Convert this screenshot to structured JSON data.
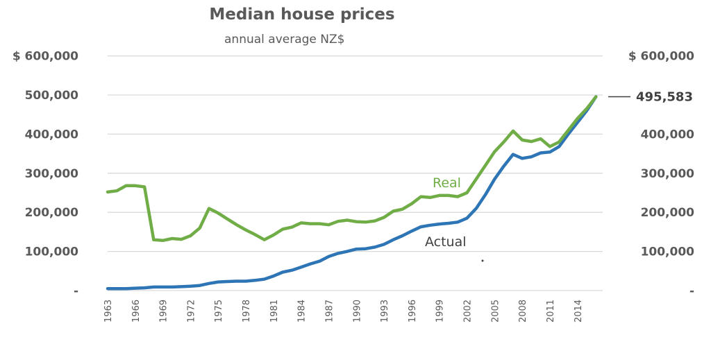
{
  "chart_data": {
    "type": "line",
    "title": "Median house prices",
    "subtitle": "annual average NZ$",
    "xlabel": "",
    "ylabel": "",
    "ylim": [
      0,
      600000
    ],
    "grid": true,
    "y_ticks_left": [
      {
        "value": 600000,
        "label": "$ 600,000"
      },
      {
        "value": 500000,
        "label": "500,000"
      },
      {
        "value": 400000,
        "label": "400,000"
      },
      {
        "value": 300000,
        "label": "300,000"
      },
      {
        "value": 200000,
        "label": "200,000"
      },
      {
        "value": 100000,
        "label": "100,000"
      },
      {
        "value": 0,
        "label": "-"
      }
    ],
    "y_ticks_right": [
      {
        "value": 600000,
        "label": "$ 600,000"
      },
      {
        "value": 400000,
        "label": "400,000"
      },
      {
        "value": 300000,
        "label": "300,000"
      },
      {
        "value": 200000,
        "label": "200,000"
      },
      {
        "value": 100000,
        "label": "100,000"
      },
      {
        "value": 0,
        "label": "-"
      }
    ],
    "x_tick_labels": [
      "1963",
      "1966",
      "1969",
      "1972",
      "1975",
      "1978",
      "1981",
      "1984",
      "1987",
      "1990",
      "1993",
      "1996",
      "1999",
      "2002",
      "2005",
      "2008",
      "2011",
      "2014"
    ],
    "x": [
      1963,
      1964,
      1965,
      1966,
      1967,
      1968,
      1969,
      1970,
      1971,
      1972,
      1973,
      1974,
      1975,
      1976,
      1977,
      1978,
      1979,
      1980,
      1981,
      1982,
      1983,
      1984,
      1985,
      1986,
      1987,
      1988,
      1989,
      1990,
      1991,
      1992,
      1993,
      1994,
      1995,
      1996,
      1997,
      1998,
      1999,
      2000,
      2001,
      2002,
      2003,
      2004,
      2005,
      2006,
      2007,
      2008,
      2009,
      2010,
      2011,
      2012,
      2013,
      2014,
      2015,
      2016
    ],
    "xlim": [
      1963,
      2016
    ],
    "series": [
      {
        "name": "Real",
        "color": "#70ad47",
        "values": [
          252000,
          255000,
          268000,
          268000,
          265000,
          130000,
          128000,
          133000,
          131000,
          140000,
          160000,
          210000,
          198000,
          183000,
          168000,
          155000,
          143000,
          130000,
          142000,
          157000,
          162000,
          173000,
          171000,
          171000,
          168000,
          177000,
          180000,
          176000,
          175000,
          178000,
          187000,
          203000,
          208000,
          222000,
          240000,
          238000,
          243000,
          243000,
          240000,
          250000,
          285000,
          320000,
          355000,
          380000,
          408000,
          385000,
          381000,
          388000,
          368000,
          380000,
          410000,
          440000,
          465000,
          495583
        ]
      },
      {
        "name": "Actual",
        "color": "#2e75b6",
        "values": [
          5000,
          5000,
          5000,
          6000,
          7000,
          9000,
          9000,
          9000,
          10000,
          11000,
          13000,
          18000,
          22000,
          23000,
          24000,
          24000,
          26000,
          29000,
          37000,
          47000,
          52000,
          60000,
          68000,
          75000,
          87000,
          95000,
          100000,
          106000,
          107000,
          111000,
          118000,
          130000,
          140000,
          152000,
          163000,
          167000,
          170000,
          172000,
          175000,
          185000,
          210000,
          245000,
          285000,
          318000,
          348000,
          338000,
          342000,
          352000,
          354000,
          368000,
          400000,
          430000,
          460000,
          495583
        ]
      }
    ],
    "annotations": [
      {
        "text": "Real",
        "series": "Real"
      },
      {
        "text": "Actual",
        "series": "Actual"
      },
      {
        "text": "495,583",
        "type": "callout",
        "value": 495583
      }
    ]
  }
}
